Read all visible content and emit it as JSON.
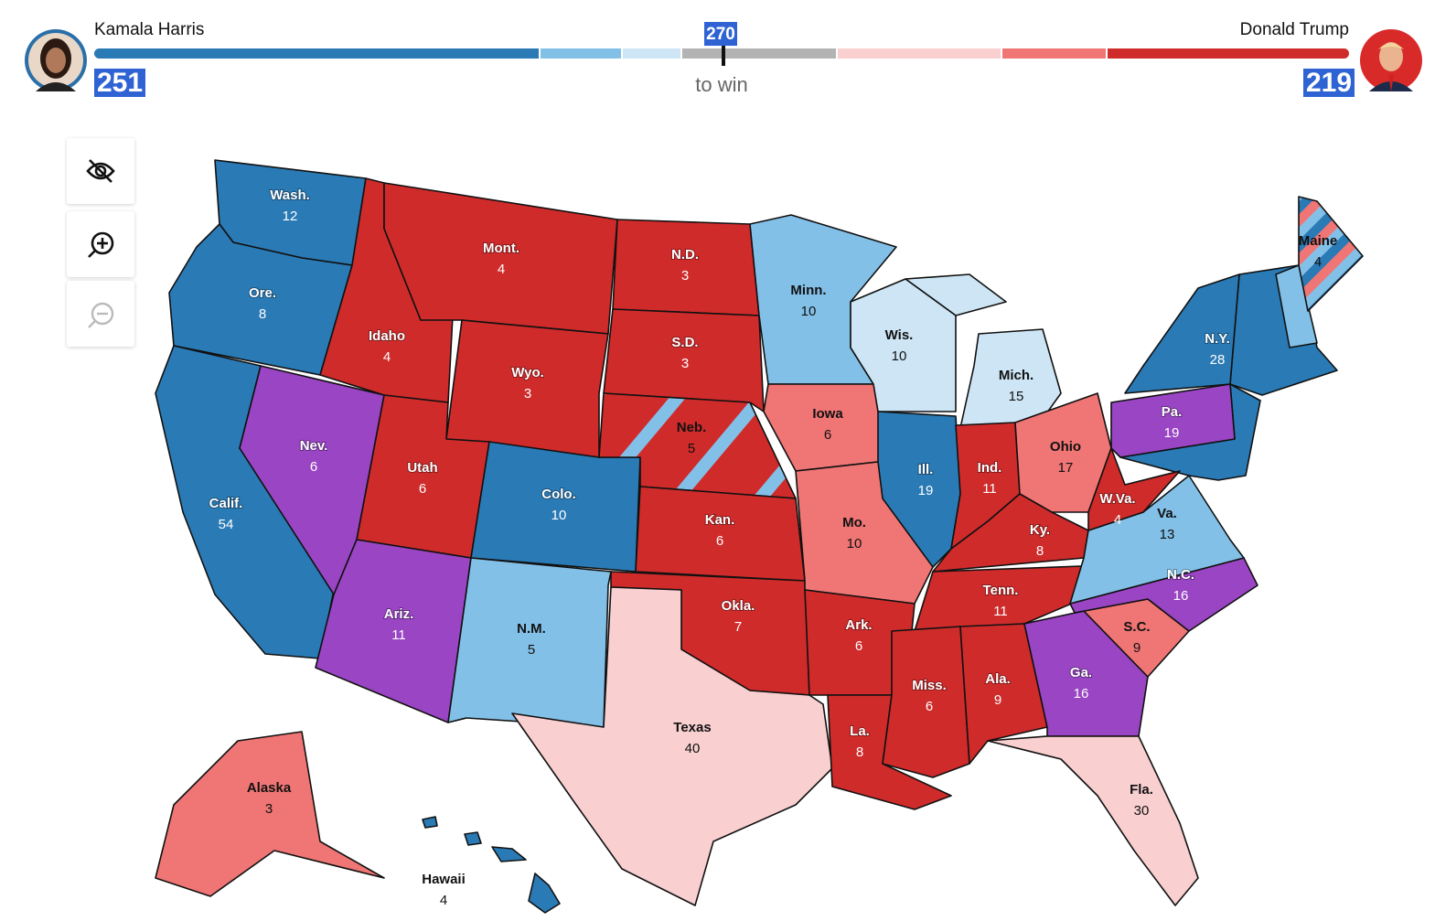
{
  "header": {
    "candidates": [
      {
        "name": "Kamala Harris",
        "votes": 251
      },
      {
        "name": "Donald Trump",
        "votes": 219
      }
    ],
    "threshold": {
      "votes": 270,
      "label": "to win"
    }
  },
  "states": [
    {
      "name": "Wash.",
      "votes": 12
    },
    {
      "name": "Ore.",
      "votes": 8
    },
    {
      "name": "Calif.",
      "votes": 54
    },
    {
      "name": "Nev.",
      "votes": 6
    },
    {
      "name": "Idaho",
      "votes": 4
    },
    {
      "name": "Mont.",
      "votes": 4
    },
    {
      "name": "Wyo.",
      "votes": 3
    },
    {
      "name": "Utah",
      "votes": 6
    },
    {
      "name": "Colo.",
      "votes": 10
    },
    {
      "name": "Ariz.",
      "votes": 11
    },
    {
      "name": "N.M.",
      "votes": 5
    },
    {
      "name": "N.D.",
      "votes": 3
    },
    {
      "name": "S.D.",
      "votes": 3
    },
    {
      "name": "Neb.",
      "votes": 5
    },
    {
      "name": "Kan.",
      "votes": 6
    },
    {
      "name": "Okla.",
      "votes": 7
    },
    {
      "name": "Texas",
      "votes": 40
    },
    {
      "name": "Minn.",
      "votes": 10
    },
    {
      "name": "Iowa",
      "votes": 6
    },
    {
      "name": "Mo.",
      "votes": 10
    },
    {
      "name": "Ark.",
      "votes": 6
    },
    {
      "name": "La.",
      "votes": 8
    },
    {
      "name": "Wis.",
      "votes": 10
    },
    {
      "name": "Mich.",
      "votes": 15
    },
    {
      "name": "Ill.",
      "votes": 19
    },
    {
      "name": "Ind.",
      "votes": 11
    },
    {
      "name": "Ohio",
      "votes": 17
    },
    {
      "name": "Ky.",
      "votes": 8
    },
    {
      "name": "Tenn.",
      "votes": 11
    },
    {
      "name": "Miss.",
      "votes": 6
    },
    {
      "name": "Ala.",
      "votes": 9
    },
    {
      "name": "Ga.",
      "votes": 16
    },
    {
      "name": "Fla.",
      "votes": 30
    },
    {
      "name": "S.C.",
      "votes": 9
    },
    {
      "name": "N.C.",
      "votes": 16
    },
    {
      "name": "Va.",
      "votes": 13
    },
    {
      "name": "W.Va.",
      "votes": 4
    },
    {
      "name": "Pa.",
      "votes": 19
    },
    {
      "name": "N.Y.",
      "votes": 28
    },
    {
      "name": "Maine",
      "votes": 4
    },
    {
      "name": "Alaska",
      "votes": 3
    },
    {
      "name": "Hawaii",
      "votes": 4
    }
  ]
}
